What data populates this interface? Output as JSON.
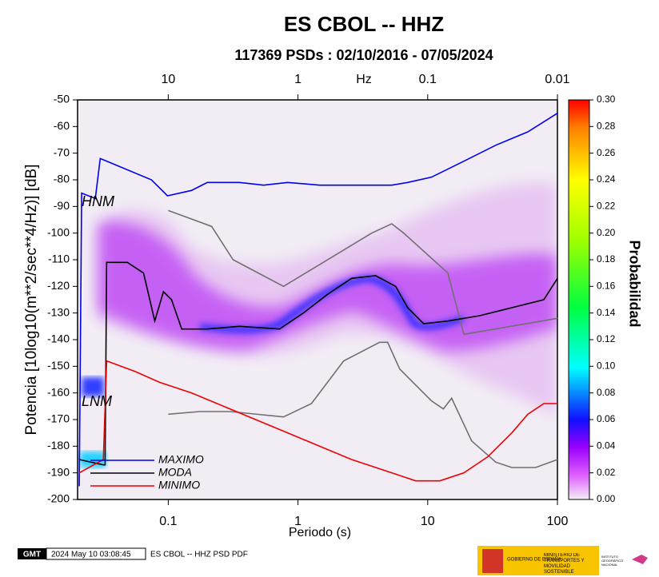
{
  "chart_data": {
    "type": "line",
    "title": "ES CBOL -- HHZ",
    "subtitle": "117369 PSDs : 02/10/2016 - 07/05/2024",
    "x_label": "Periodo (s)",
    "y_label": "Potencia [10log10(m**2/sec**4/Hz)] [dB]",
    "x2_label": "Hz",
    "x_log": true,
    "xlim": [
      0.02,
      100
    ],
    "xticks": [
      0.1,
      1,
      10,
      100
    ],
    "x2ticks": [
      10,
      1,
      0.1,
      0.01
    ],
    "ylim": [
      -200,
      -50
    ],
    "yticks": [
      -200,
      -190,
      -180,
      -170,
      -160,
      -150,
      -140,
      -130,
      -120,
      -110,
      -100,
      -90,
      -80,
      -70,
      -60,
      -50
    ],
    "legend": "bottom-left",
    "series": [
      {
        "name": "MAXIMO",
        "color": "#0000ee",
        "x": [
          0.0206,
          0.0215,
          0.0274,
          0.0299,
          0.0742,
          0.0986,
          0.151,
          0.2,
          0.354,
          0.543,
          0.832,
          1.47,
          5.28,
          7.01,
          10.7,
          19.0,
          33.5,
          59.1,
          100
        ],
        "values": [
          -195,
          -85,
          -87,
          -72,
          -80,
          -86,
          -84,
          -81,
          -81,
          -82,
          -81,
          -82,
          -82,
          -81,
          -79,
          -73,
          -67,
          -62,
          -55
        ]
      },
      {
        "name": "MODA",
        "color": "#000000",
        "x": [
          0.0206,
          0.0316,
          0.0326,
          0.0335,
          0.0484,
          0.0645,
          0.0787,
          0.0918,
          0.106,
          0.127,
          0.2,
          0.354,
          0.721,
          1.1,
          1.69,
          2.59,
          3.97,
          5.66,
          7.01,
          9.3,
          14.3,
          25.2,
          44.5,
          78.5,
          100
        ],
        "values": [
          -185,
          -187,
          -187,
          -111,
          -111,
          -115,
          -133,
          -122,
          -125,
          -136,
          -136,
          -135,
          -136,
          -130,
          -123,
          -117,
          -116,
          -120,
          -128,
          -134,
          -133,
          -131,
          -128,
          -125,
          -117
        ]
      },
      {
        "name": "MINIMO",
        "color": "#ee0000",
        "x": [
          0.0206,
          0.0316,
          0.0335,
          0.0559,
          0.0857,
          0.151,
          0.267,
          0.471,
          0.832,
          1.47,
          2.59,
          5.28,
          8.08,
          12.4,
          19.0,
          29.0,
          44.5,
          59.1,
          78.5,
          100
        ],
        "values": [
          -190,
          -185,
          -148,
          -152,
          -156,
          -160,
          -165,
          -170,
          -175,
          -180,
          -185,
          -190,
          -193,
          -193,
          -190,
          -184,
          -175,
          -168,
          -164,
          -164
        ]
      }
    ],
    "reference_curves": [
      {
        "label": "HNM",
        "color": "#707070",
        "x": [
          0.1,
          0.216,
          0.316,
          0.774,
          3.7,
          5.28,
          6.53,
          14.3,
          19.0,
          100
        ],
        "values": [
          -91.5,
          -97.5,
          -110,
          -120,
          -100,
          -96.5,
          -100,
          -115,
          -138,
          -132
        ]
      },
      {
        "label": "LNM",
        "color": "#707070",
        "x": [
          0.1,
          0.174,
          0.3,
          0.774,
          1.27,
          2.25,
          4.26,
          4.91,
          6.08,
          10.7,
          13.2,
          15.3,
          21.8,
          33.5,
          44.5,
          68,
          100
        ],
        "values": [
          -168,
          -167,
          -167,
          -169,
          -164,
          -148,
          -141,
          -141,
          -151,
          -163,
          -166,
          -162,
          -178,
          -186,
          -188,
          -188,
          -185
        ]
      }
    ],
    "colorbar": {
      "label": "Probabilidad",
      "lim": [
        0,
        0.3
      ],
      "ticks": [
        {
          "value": 0,
          "label": "0.00"
        },
        {
          "value": 0.02,
          "label": "0.02"
        },
        {
          "value": 0.04,
          "label": "0.04"
        },
        {
          "value": 0.06,
          "label": "0.06"
        },
        {
          "value": 0.08,
          "label": "0.08"
        },
        {
          "value": 0.1,
          "label": "0.10"
        },
        {
          "value": 0.12,
          "label": "0.12"
        },
        {
          "value": 0.14,
          "label": "0.14"
        },
        {
          "value": 0.16,
          "label": "0.16"
        },
        {
          "value": 0.18,
          "label": "0.18"
        },
        {
          "value": 0.2,
          "label": "0.20"
        },
        {
          "value": 0.22,
          "label": "0.22"
        },
        {
          "value": 0.24,
          "label": "0.24"
        },
        {
          "value": 0.26,
          "label": "0.26"
        },
        {
          "value": 0.28,
          "label": "0.28"
        },
        {
          "value": 0.3,
          "label": "0.30"
        }
      ]
    }
  },
  "footer": {
    "logo": "GMT",
    "timestamp": "2024 May 10 03:08:45",
    "caption": "ES CBOL -- HHZ PSD PDF",
    "gov": "GOBIERNO DE ESPAÑA",
    "ministry": "MINISTERIO DE TRANSPORTES Y MOVILIDAD SOSTENIBLE",
    "institute": "INSTITUTO GEOGRÁFICO NACIONAL"
  }
}
